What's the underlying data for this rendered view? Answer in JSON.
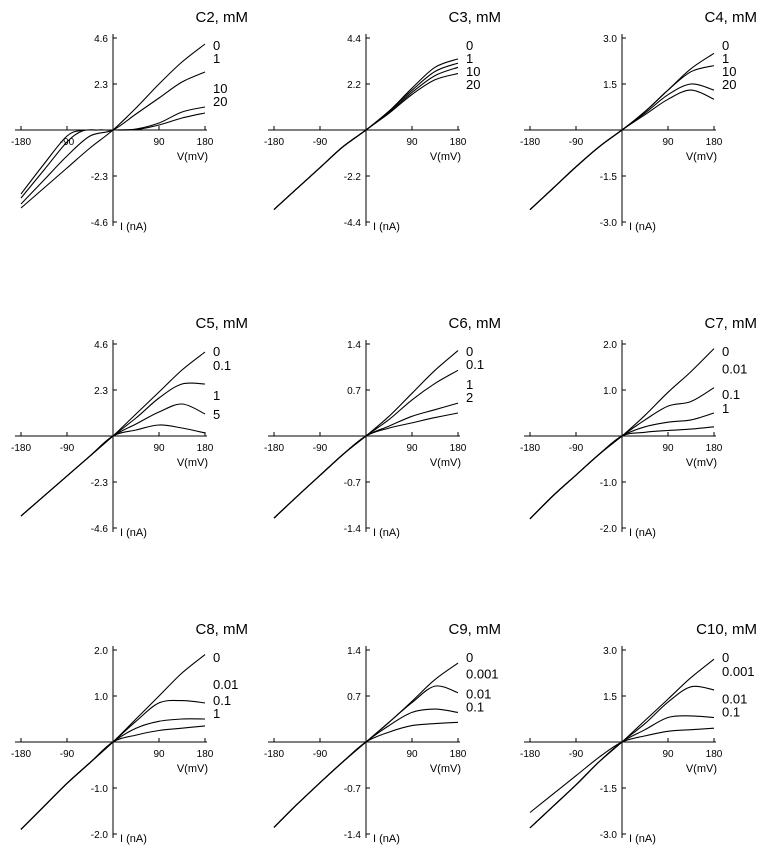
{
  "chart_data": [
    {
      "type": "line",
      "title": "C2, mM",
      "xlabel": "V(mV)",
      "ylabel": "I (nA)",
      "xlim": [
        -180,
        180
      ],
      "ylim": [
        -4.6,
        4.6
      ],
      "xticks": [
        "-180",
        "-90",
        "90",
        "180"
      ],
      "yticks": [
        "4.6",
        "2.3",
        "-2.3",
        "-4.6"
      ],
      "series": [
        {
          "name": "0",
          "x": [
            -180,
            -135,
            -90,
            -45,
            0,
            45,
            90,
            135,
            180
          ],
          "y": [
            -3.9,
            -2.9,
            -1.9,
            -0.9,
            0,
            1.1,
            2.3,
            3.4,
            4.3
          ]
        },
        {
          "name": "1",
          "x": [
            -180,
            -135,
            -90,
            -45,
            0,
            45,
            90,
            135,
            180
          ],
          "y": [
            -3.7,
            -2.5,
            -1.3,
            -0.3,
            0,
            0.8,
            1.6,
            2.4,
            2.9
          ]
        },
        {
          "name": "10",
          "x": [
            -180,
            -135,
            -90,
            -60,
            -30,
            0,
            45,
            90,
            135,
            180
          ],
          "y": [
            -3.4,
            -2.0,
            -0.6,
            -0.05,
            0,
            0,
            0.05,
            0.35,
            0.9,
            1.15
          ]
        },
        {
          "name": "20",
          "x": [
            -180,
            -135,
            -90,
            -60,
            -30,
            0,
            45,
            90,
            135,
            180
          ],
          "y": [
            -3.2,
            -1.7,
            -0.3,
            -0.02,
            0,
            0,
            0.02,
            0.25,
            0.6,
            0.85
          ]
        }
      ]
    },
    {
      "type": "line",
      "title": "C3, mM",
      "xlabel": "V(mV)",
      "ylabel": "I (nA)",
      "xlim": [
        -180,
        180
      ],
      "ylim": [
        -4.4,
        4.4
      ],
      "xticks": [
        "-180",
        "-90",
        "90",
        "180"
      ],
      "yticks": [
        "4.4",
        "2.2",
        "-2.2",
        "-4.4"
      ],
      "series": [
        {
          "name": "0",
          "x": [
            -180,
            -135,
            -90,
            -45,
            0,
            45,
            90,
            135,
            180
          ],
          "y": [
            -3.8,
            -2.8,
            -1.8,
            -0.8,
            0,
            0.9,
            2.0,
            3.0,
            3.4
          ]
        },
        {
          "name": "1",
          "x": [
            -180,
            -135,
            -90,
            -45,
            0,
            45,
            90,
            135,
            180
          ],
          "y": [
            -3.8,
            -2.8,
            -1.8,
            -0.8,
            0,
            0.9,
            1.9,
            2.8,
            3.2
          ]
        },
        {
          "name": "10",
          "x": [
            -180,
            -135,
            -90,
            -45,
            0,
            45,
            90,
            135,
            180
          ],
          "y": [
            -3.8,
            -2.8,
            -1.8,
            -0.8,
            0,
            0.85,
            1.8,
            2.6,
            3.0
          ]
        },
        {
          "name": "20",
          "x": [
            -180,
            -135,
            -90,
            -45,
            0,
            45,
            90,
            135,
            180
          ],
          "y": [
            -3.8,
            -2.8,
            -1.8,
            -0.8,
            0,
            0.8,
            1.7,
            2.4,
            2.7
          ]
        }
      ]
    },
    {
      "type": "line",
      "title": "C4, mM",
      "xlabel": "V(mV)",
      "ylabel": "I (nA)",
      "xlim": [
        -180,
        180
      ],
      "ylim": [
        -3.0,
        3.0
      ],
      "xticks": [
        "-180",
        "-90",
        "90",
        "180"
      ],
      "yticks": [
        "3.0",
        "1.5",
        "-1.5",
        "-3.0"
      ],
      "series": [
        {
          "name": "0",
          "x": [
            -180,
            -135,
            -90,
            -45,
            0,
            45,
            90,
            135,
            180
          ],
          "y": [
            -2.6,
            -1.9,
            -1.2,
            -0.55,
            0,
            0.6,
            1.3,
            2.0,
            2.5
          ]
        },
        {
          "name": "1",
          "x": [
            -180,
            -135,
            -90,
            -45,
            0,
            45,
            90,
            135,
            180
          ],
          "y": [
            -2.6,
            -1.9,
            -1.2,
            -0.55,
            0,
            0.6,
            1.3,
            1.9,
            2.1
          ]
        },
        {
          "name": "10",
          "x": [
            -180,
            -135,
            -90,
            -45,
            0,
            45,
            90,
            135,
            180
          ],
          "y": [
            -2.6,
            -1.9,
            -1.2,
            -0.55,
            0,
            0.55,
            1.15,
            1.5,
            1.3
          ]
        },
        {
          "name": "20",
          "x": [
            -180,
            -135,
            -90,
            -45,
            0,
            45,
            90,
            135,
            180
          ],
          "y": [
            -2.6,
            -1.9,
            -1.2,
            -0.55,
            0,
            0.5,
            1.0,
            1.3,
            1.0
          ]
        }
      ]
    },
    {
      "type": "line",
      "title": "C5, mM",
      "xlabel": "V(mV)",
      "ylabel": "I (nA)",
      "xlim": [
        -180,
        180
      ],
      "ylim": [
        -4.6,
        4.6
      ],
      "xticks": [
        "-180",
        "-90",
        "90",
        "180"
      ],
      "yticks": [
        "4.6",
        "2.3",
        "-2.3",
        "-4.6"
      ],
      "series": [
        {
          "name": "0",
          "x": [
            -180,
            -135,
            -90,
            -45,
            0,
            45,
            90,
            135,
            180
          ],
          "y": [
            -4.0,
            -3.0,
            -2.0,
            -1.0,
            0,
            1.1,
            2.2,
            3.3,
            4.2
          ]
        },
        {
          "name": "0.1",
          "x": [
            -180,
            -135,
            -90,
            -45,
            0,
            45,
            90,
            135,
            180
          ],
          "y": [
            -4.0,
            -3.0,
            -2.0,
            -1.0,
            0,
            0.9,
            1.9,
            2.6,
            2.6
          ]
        },
        {
          "name": "1",
          "x": [
            -180,
            -135,
            -90,
            -45,
            0,
            45,
            90,
            135,
            180
          ],
          "y": [
            -4.0,
            -3.0,
            -2.0,
            -1.0,
            0,
            0.6,
            1.2,
            1.6,
            1.1
          ]
        },
        {
          "name": "5",
          "x": [
            -180,
            -135,
            -90,
            -45,
            0,
            45,
            90,
            135,
            180
          ],
          "y": [
            -4.0,
            -3.0,
            -2.0,
            -1.0,
            0,
            0.3,
            0.55,
            0.4,
            0.15
          ]
        }
      ]
    },
    {
      "type": "line",
      "title": "C6, mM",
      "xlabel": "V(mV)",
      "ylabel": "I (nA)",
      "xlim": [
        -180,
        180
      ],
      "ylim": [
        -1.4,
        1.4
      ],
      "xticks": [
        "-180",
        "-90",
        "90",
        "180"
      ],
      "yticks": [
        "1.4",
        "0.7",
        "-0.7",
        "-1.4"
      ],
      "series": [
        {
          "name": "0",
          "x": [
            -180,
            -135,
            -90,
            -45,
            0,
            45,
            90,
            135,
            180
          ],
          "y": [
            -1.25,
            -0.92,
            -0.6,
            -0.28,
            0,
            0.3,
            0.65,
            1.0,
            1.3
          ]
        },
        {
          "name": "0.1",
          "x": [
            -180,
            -135,
            -90,
            -45,
            0,
            45,
            90,
            135,
            180
          ],
          "y": [
            -1.25,
            -0.92,
            -0.6,
            -0.28,
            0,
            0.25,
            0.55,
            0.8,
            1.0
          ]
        },
        {
          "name": "1",
          "x": [
            -180,
            -135,
            -90,
            -45,
            0,
            45,
            90,
            135,
            180
          ],
          "y": [
            -1.25,
            -0.92,
            -0.6,
            -0.28,
            0,
            0.15,
            0.3,
            0.4,
            0.5
          ]
        },
        {
          "name": "2",
          "x": [
            -180,
            -135,
            -90,
            -45,
            0,
            45,
            90,
            135,
            180
          ],
          "y": [
            -1.25,
            -0.92,
            -0.6,
            -0.28,
            0,
            0.12,
            0.2,
            0.28,
            0.35
          ]
        }
      ]
    },
    {
      "type": "line",
      "title": "C7, mM",
      "xlabel": "V(mV)",
      "ylabel": "I (nA)",
      "xlim": [
        -180,
        180
      ],
      "ylim": [
        -2.0,
        2.0
      ],
      "xticks": [
        "-180",
        "-90",
        "90",
        "180"
      ],
      "yticks": [
        "2.0",
        "1.0",
        "-1.0",
        "-2.0"
      ],
      "series": [
        {
          "name": "0",
          "x": [
            -180,
            -135,
            -90,
            -45,
            0,
            45,
            90,
            135,
            180
          ],
          "y": [
            -1.8,
            -1.3,
            -0.85,
            -0.4,
            0,
            0.45,
            0.95,
            1.4,
            1.9
          ]
        },
        {
          "name": "0.01",
          "x": [
            -180,
            -135,
            -90,
            -45,
            0,
            45,
            90,
            135,
            180
          ],
          "y": [
            -1.8,
            -1.3,
            -0.85,
            -0.4,
            0,
            0.35,
            0.65,
            0.75,
            1.05
          ]
        },
        {
          "name": "0.1",
          "x": [
            -180,
            -135,
            -90,
            -45,
            0,
            45,
            90,
            135,
            180
          ],
          "y": [
            -1.8,
            -1.3,
            -0.85,
            -0.4,
            0,
            0.2,
            0.3,
            0.35,
            0.5
          ]
        },
        {
          "name": "1",
          "x": [
            -180,
            -135,
            -90,
            -45,
            0,
            45,
            90,
            135,
            180
          ],
          "y": [
            -1.8,
            -1.3,
            -0.85,
            -0.4,
            0,
            0.08,
            0.12,
            0.15,
            0.2
          ]
        }
      ]
    },
    {
      "type": "line",
      "title": "C8, mM",
      "xlabel": "V(mV)",
      "ylabel": "I (nA)",
      "xlim": [
        -180,
        180
      ],
      "ylim": [
        -2.0,
        2.0
      ],
      "xticks": [
        "-180",
        "-90",
        "90",
        "180"
      ],
      "yticks": [
        "2.0",
        "1.0",
        "-1.0",
        "-2.0"
      ],
      "series": [
        {
          "name": "0",
          "x": [
            -180,
            -135,
            -90,
            -45,
            0,
            45,
            90,
            135,
            180
          ],
          "y": [
            -1.9,
            -1.4,
            -0.9,
            -0.45,
            0,
            0.5,
            1.0,
            1.5,
            1.9
          ]
        },
        {
          "name": "0.01",
          "x": [
            -180,
            -135,
            -90,
            -45,
            0,
            45,
            90,
            135,
            180
          ],
          "y": [
            -1.9,
            -1.4,
            -0.9,
            -0.45,
            0,
            0.45,
            0.85,
            0.9,
            0.85
          ]
        },
        {
          "name": "0.1",
          "x": [
            -180,
            -135,
            -90,
            -45,
            0,
            45,
            90,
            135,
            180
          ],
          "y": [
            -1.9,
            -1.4,
            -0.9,
            -0.45,
            0,
            0.3,
            0.45,
            0.5,
            0.5
          ]
        },
        {
          "name": "1",
          "x": [
            -180,
            -135,
            -90,
            -45,
            0,
            45,
            90,
            135,
            180
          ],
          "y": [
            -1.9,
            -1.4,
            -0.9,
            -0.45,
            0,
            0.15,
            0.25,
            0.3,
            0.35
          ]
        }
      ]
    },
    {
      "type": "line",
      "title": "C9, mM",
      "xlabel": "V(mV)",
      "ylabel": "I (nA)",
      "xlim": [
        -180,
        180
      ],
      "ylim": [
        -1.4,
        1.4
      ],
      "xticks": [
        "-180",
        "-90",
        "90",
        "180"
      ],
      "yticks": [
        "1.4",
        "0.7",
        "-0.7",
        "-1.4"
      ],
      "series": [
        {
          "name": "0",
          "x": [
            -180,
            -135,
            -90,
            -45,
            0,
            45,
            90,
            135,
            180
          ],
          "y": [
            -1.3,
            -0.95,
            -0.62,
            -0.3,
            0,
            0.3,
            0.62,
            0.95,
            1.2
          ]
        },
        {
          "name": "0.001",
          "x": [
            -180,
            -135,
            -90,
            -45,
            0,
            45,
            90,
            135,
            180
          ],
          "y": [
            -1.3,
            -0.95,
            -0.62,
            -0.3,
            0,
            0.3,
            0.6,
            0.85,
            0.75
          ]
        },
        {
          "name": "0.01",
          "x": [
            -180,
            -135,
            -90,
            -45,
            0,
            45,
            90,
            135,
            180
          ],
          "y": [
            -1.3,
            -0.95,
            -0.62,
            -0.3,
            0,
            0.25,
            0.45,
            0.5,
            0.45
          ]
        },
        {
          "name": "0.1",
          "x": [
            -180,
            -135,
            -90,
            -45,
            0,
            45,
            90,
            135,
            180
          ],
          "y": [
            -1.3,
            -0.95,
            -0.62,
            -0.3,
            0,
            0.15,
            0.25,
            0.28,
            0.3
          ]
        }
      ]
    },
    {
      "type": "line",
      "title": "C10, mM",
      "xlabel": "V(mV)",
      "ylabel": "I (nA)",
      "xlim": [
        -180,
        180
      ],
      "ylim": [
        -3.0,
        3.0
      ],
      "xticks": [
        "-180",
        "-90",
        "90",
        "180"
      ],
      "yticks": [
        "3.0",
        "1.5",
        "-1.5",
        "-3.0"
      ],
      "series": [
        {
          "name": "0",
          "x": [
            -180,
            -135,
            -90,
            -45,
            0,
            45,
            90,
            135,
            180
          ],
          "y": [
            -2.8,
            -2.1,
            -1.4,
            -0.65,
            0,
            0.7,
            1.4,
            2.1,
            2.7
          ]
        },
        {
          "name": "0.001",
          "x": [
            -180,
            -135,
            -90,
            -45,
            0,
            45,
            90,
            135,
            180
          ],
          "y": [
            -2.8,
            -2.1,
            -1.4,
            -0.65,
            0,
            0.6,
            1.3,
            1.8,
            1.7
          ]
        },
        {
          "name": "0.01",
          "x": [
            -180,
            -135,
            -90,
            -45,
            0,
            45,
            90,
            135,
            180
          ],
          "y": [
            -2.8,
            -2.1,
            -1.4,
            -0.65,
            0,
            0.4,
            0.8,
            0.85,
            0.8
          ]
        },
        {
          "name": "0.1",
          "x": [
            -180,
            -135,
            -90,
            -45,
            0,
            45,
            90,
            135,
            180
          ],
          "y": [
            -2.3,
            -1.7,
            -1.1,
            -0.5,
            0,
            0.2,
            0.35,
            0.4,
            0.45
          ]
        }
      ]
    }
  ]
}
